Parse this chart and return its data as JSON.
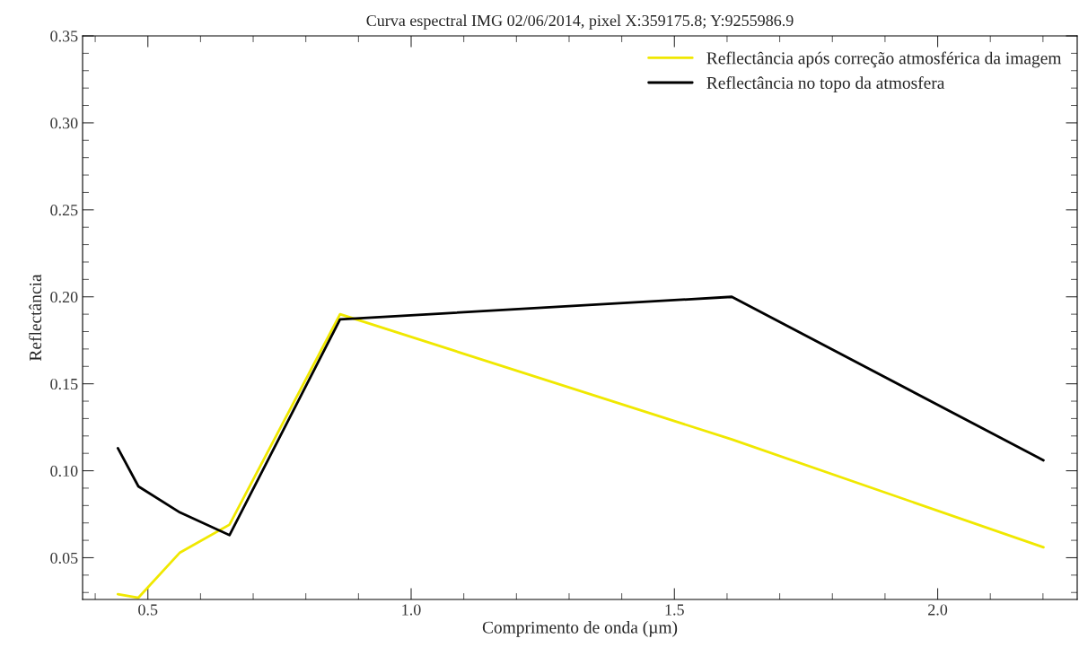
{
  "chart_data": {
    "type": "line",
    "title": "Curva espectral IMG 02/06/2014, pixel X:359175.8; Y:9255986.9",
    "xlabel": "Comprimento de onda (µm)",
    "ylabel": "Reflectância",
    "x": [
      0.443,
      0.482,
      0.561,
      0.655,
      0.865,
      1.609,
      2.201
    ],
    "series": [
      {
        "name": "Reflectância após correção atmosférica da imagem",
        "color": "#f0e800",
        "values": [
          0.029,
          0.027,
          0.053,
          0.069,
          0.19,
          0.118,
          0.056
        ]
      },
      {
        "name": "Reflectância no topo da atmosfera",
        "color": "#000000",
        "values": [
          0.113,
          0.091,
          0.076,
          0.063,
          0.187,
          0.2,
          0.106
        ]
      }
    ],
    "xlim": [
      0.376,
      2.265
    ],
    "ylim": [
      0.026,
      0.35
    ],
    "xticks": [
      {
        "value": 0.5,
        "label": "0.5"
      },
      {
        "value": 1.0,
        "label": "1.0"
      },
      {
        "value": 1.5,
        "label": "1.5"
      },
      {
        "value": 2.0,
        "label": "2.0"
      }
    ],
    "yticks": [
      {
        "value": 0.05,
        "label": "0.05"
      },
      {
        "value": 0.1,
        "label": "0.10"
      },
      {
        "value": 0.15,
        "label": "0.15"
      },
      {
        "value": 0.2,
        "label": "0.20"
      },
      {
        "value": 0.25,
        "label": "0.25"
      },
      {
        "value": 0.3,
        "label": "0.30"
      },
      {
        "value": 0.35,
        "label": "0.35"
      }
    ],
    "grid": false,
    "legend": "top right",
    "marker": "none",
    "line_style": "solid"
  }
}
